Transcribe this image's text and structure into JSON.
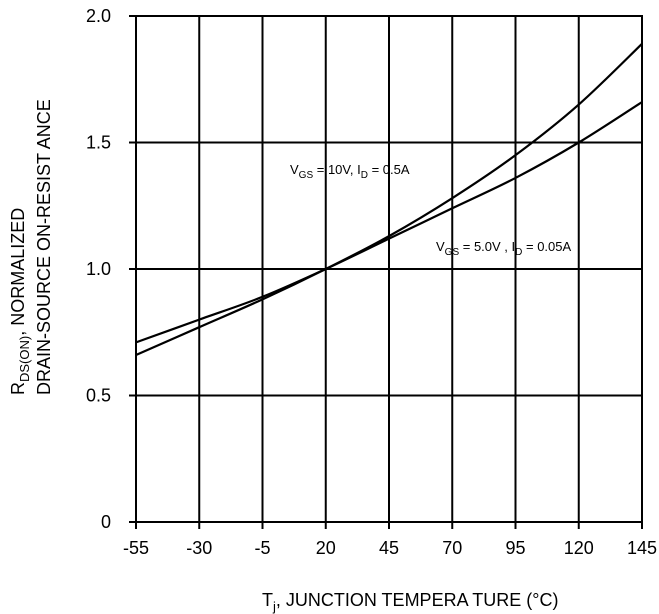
{
  "chart_data": {
    "type": "line",
    "xlabel": {
      "main": "T",
      "sub": "j",
      "rest": ", JUNCTION   TEMPERA  TURE   (°C)"
    },
    "ylabel": {
      "line1_main": "R",
      "line1_sub": "DS(ON)",
      "line1_rest": ",  NORMALIZED",
      "line2": "DRAIN-SOURCE    ON-RESIST   ANCE"
    },
    "x_ticks": [
      -55,
      -30,
      -5,
      20,
      45,
      70,
      95,
      120,
      145
    ],
    "y_ticks": [
      {
        "value": 0,
        "label": "0"
      },
      {
        "value": 0.5,
        "label": "0.5"
      },
      {
        "value": 1.0,
        "label": "1.0"
      },
      {
        "value": 1.5,
        "label": "1.5"
      },
      {
        "value": 2.0,
        "label": "2.0"
      }
    ],
    "xlim": [
      -55,
      145
    ],
    "ylim": [
      0,
      2.0
    ],
    "grid": true,
    "series": [
      {
        "key": "vgs10",
        "annotation": {
          "v": "V",
          "vsub": "GS",
          "vval": "  = 10V, I",
          "isub": "D",
          "ival": " = 0.5A"
        },
        "x": [
          -55,
          -30,
          -5,
          20,
          45,
          70,
          95,
          120,
          145
        ],
        "y": [
          0.66,
          0.77,
          0.88,
          1.0,
          1.13,
          1.28,
          1.45,
          1.65,
          1.89
        ]
      },
      {
        "key": "vgs5",
        "annotation": {
          "v": "V",
          "vsub": "GS",
          "vval": " = 5.0V , I",
          "isub": "D",
          "ival": " = 0.05A"
        },
        "x": [
          -55,
          -30,
          -5,
          20,
          45,
          70,
          95,
          120,
          145
        ],
        "y": [
          0.71,
          0.8,
          0.89,
          1.0,
          1.12,
          1.24,
          1.36,
          1.5,
          1.66
        ]
      }
    ]
  }
}
